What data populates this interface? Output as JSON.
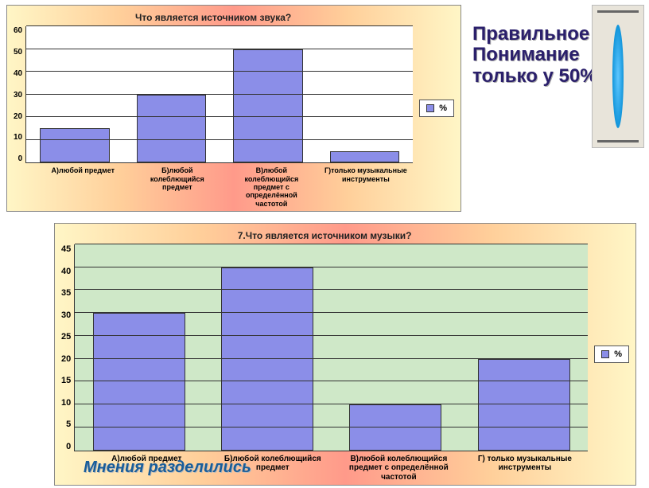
{
  "chart1": {
    "type": "bar",
    "title": "Что является источником звука?",
    "title_fontsize": 12,
    "categories": [
      "А)любой предмет",
      "Б)любой колеблющийся предмет",
      "В)любой колеблющийся предмет с определённой частотой",
      "Г)только музыкальные инструменты"
    ],
    "values": [
      15,
      30,
      50,
      5
    ],
    "ylim": [
      0,
      60
    ],
    "ytick_step": 10,
    "yticks": [
      60,
      50,
      40,
      30,
      20,
      10,
      0
    ],
    "yaxis_fontsize": 10,
    "xaxis_fontsize": 9,
    "bar_color": "#8b8ee8",
    "bar_border": "#333333",
    "bar_width_pct": 18,
    "plot_bg": "#ffffff",
    "grid_color": "#333333",
    "legend_label": "%",
    "legend_swatch": "#8b8ee8"
  },
  "chart2": {
    "type": "bar",
    "title": "7.Что является источником музыки?",
    "title_fontsize": 12,
    "categories": [
      "А)любой предмет",
      "Б)любой колеблющийся предмет",
      "В)любой колеблющийся предмет с определённой частотой",
      "Г) только музыкальные инструменты"
    ],
    "values": [
      30,
      40,
      10,
      20
    ],
    "ylim": [
      0,
      45
    ],
    "ytick_step": 5,
    "yticks": [
      45,
      40,
      35,
      30,
      25,
      20,
      15,
      10,
      5,
      0
    ],
    "yaxis_fontsize": 11,
    "xaxis_fontsize": 10,
    "bar_color": "#8b8ee8",
    "bar_border": "#333333",
    "bar_width_pct": 18,
    "plot_bg": "#cfe8c8",
    "grid_color": "#333333",
    "legend_label": "%",
    "legend_swatch": "#8b8ee8"
  },
  "side_text": {
    "line1": "Правильное",
    "line2": "Понимание",
    "line3": "только у 50%",
    "color": "#2a1f6b",
    "fontsize": 24
  },
  "caption_opinions": {
    "text": "Мнения разделились",
    "color": "#185d9a",
    "fontsize": 20
  },
  "panel_gradient": [
    "#fff6c6",
    "#ffcf9a",
    "#ff9a8a",
    "#ffcf9a",
    "#fff6c6"
  ]
}
